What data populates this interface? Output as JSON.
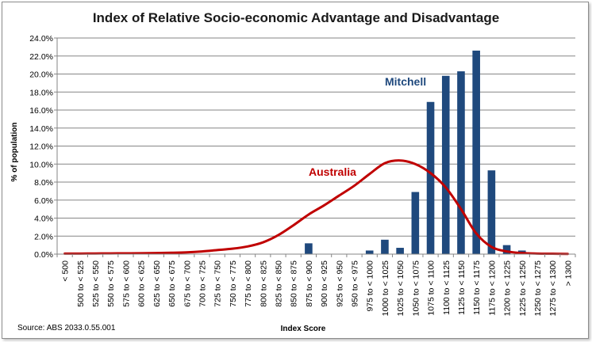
{
  "chart_data": {
    "type": "bar",
    "title": "Index of Relative Socio-economic Advantage and Disadvantage",
    "xlabel": "Index Score",
    "ylabel": "% of population",
    "source": "Source: ABS 2033.0.55.001",
    "ylim": [
      0,
      24
    ],
    "ytick_step": 2,
    "ytick_labels": [
      "0.0%",
      "2.0%",
      "4.0%",
      "6.0%",
      "8.0%",
      "10.0%",
      "12.0%",
      "14.0%",
      "16.0%",
      "18.0%",
      "20.0%",
      "22.0%",
      "24.0%"
    ],
    "grid": true,
    "categories": [
      "< 500",
      "500 to < 525",
      "525 to < 550",
      "550 to < 575",
      "575 to < 600",
      "600 to < 625",
      "625 to < 650",
      "650 to < 675",
      "675 to < 700",
      "700 to < 725",
      "725 to < 750",
      "750 to < 775",
      "775 to < 800",
      "800 to < 825",
      "825 to < 850",
      "850 to < 875",
      "875 to < 900",
      "900 to < 925",
      "925 to < 950",
      "950 to < 975",
      "975 to < 1000",
      "1000 to < 1025",
      "1025 to < 1050",
      "1050 to < 1075",
      "1075 to < 1100",
      "1100 to < 1125",
      "1125 to < 1150",
      "1150 to < 1175",
      "1175 to < 1200",
      "1200 to < 1225",
      "1225 to < 1250",
      "1250 to < 1275",
      "1275 to < 1300",
      "> 1300"
    ],
    "series": [
      {
        "name": "Mitchell",
        "kind": "bar",
        "color": "#1f497d",
        "values": [
          0,
          0,
          0,
          0,
          0,
          0,
          0,
          0,
          0,
          0,
          0,
          0,
          0,
          0,
          0,
          0,
          1.2,
          0,
          0,
          0,
          0.4,
          1.6,
          0.7,
          6.9,
          16.9,
          19.8,
          20.3,
          22.6,
          9.3,
          1.0,
          0.4,
          0,
          0,
          0
        ]
      },
      {
        "name": "Australia",
        "kind": "line",
        "color": "#c00000",
        "values": [
          0.05,
          0.06,
          0.07,
          0.08,
          0.09,
          0.1,
          0.12,
          0.15,
          0.2,
          0.3,
          0.45,
          0.6,
          0.85,
          1.3,
          2.1,
          3.2,
          4.4,
          5.4,
          6.5,
          7.6,
          8.9,
          10.1,
          10.4,
          10.0,
          9.0,
          7.4,
          5.0,
          2.3,
          0.8,
          0.3,
          0.12,
          0.06,
          0.04,
          0.02
        ]
      }
    ]
  }
}
